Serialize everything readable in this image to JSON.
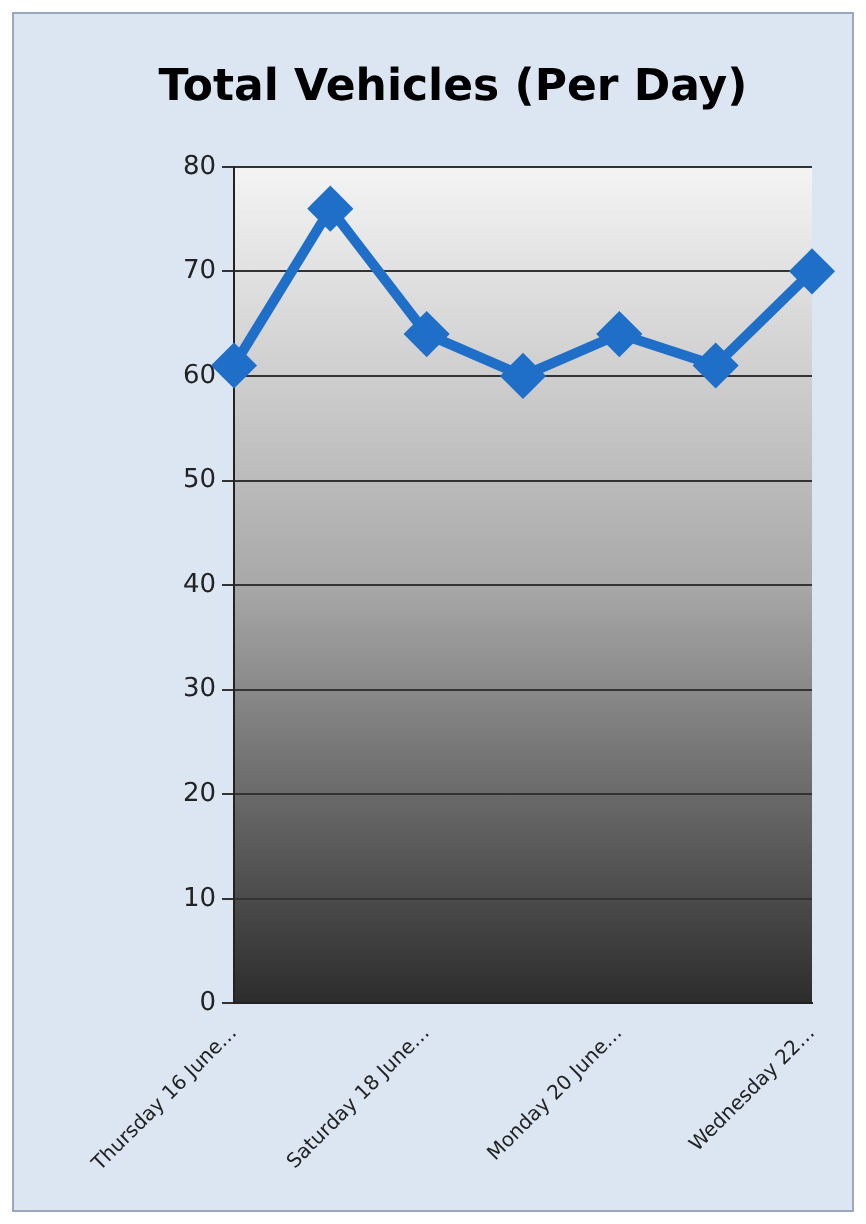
{
  "chart_data": {
    "type": "line",
    "title": "Total Vehicles (Per Day)",
    "categories": [
      "Thursday 16 June…",
      null,
      "Saturday 18 June…",
      null,
      "Monday 20 June…",
      null,
      "Wednesday 22…"
    ],
    "series": [
      {
        "color": "#1f6fc8",
        "values": [
          61,
          76,
          64,
          60,
          64,
          61,
          70
        ]
      }
    ],
    "ylim": [
      0,
      80
    ],
    "yticks": [
      0,
      10,
      20,
      30,
      40,
      50,
      60,
      70,
      80
    ],
    "grid": "y",
    "legend": false,
    "marker": "diamond",
    "line_style": "solid"
  }
}
